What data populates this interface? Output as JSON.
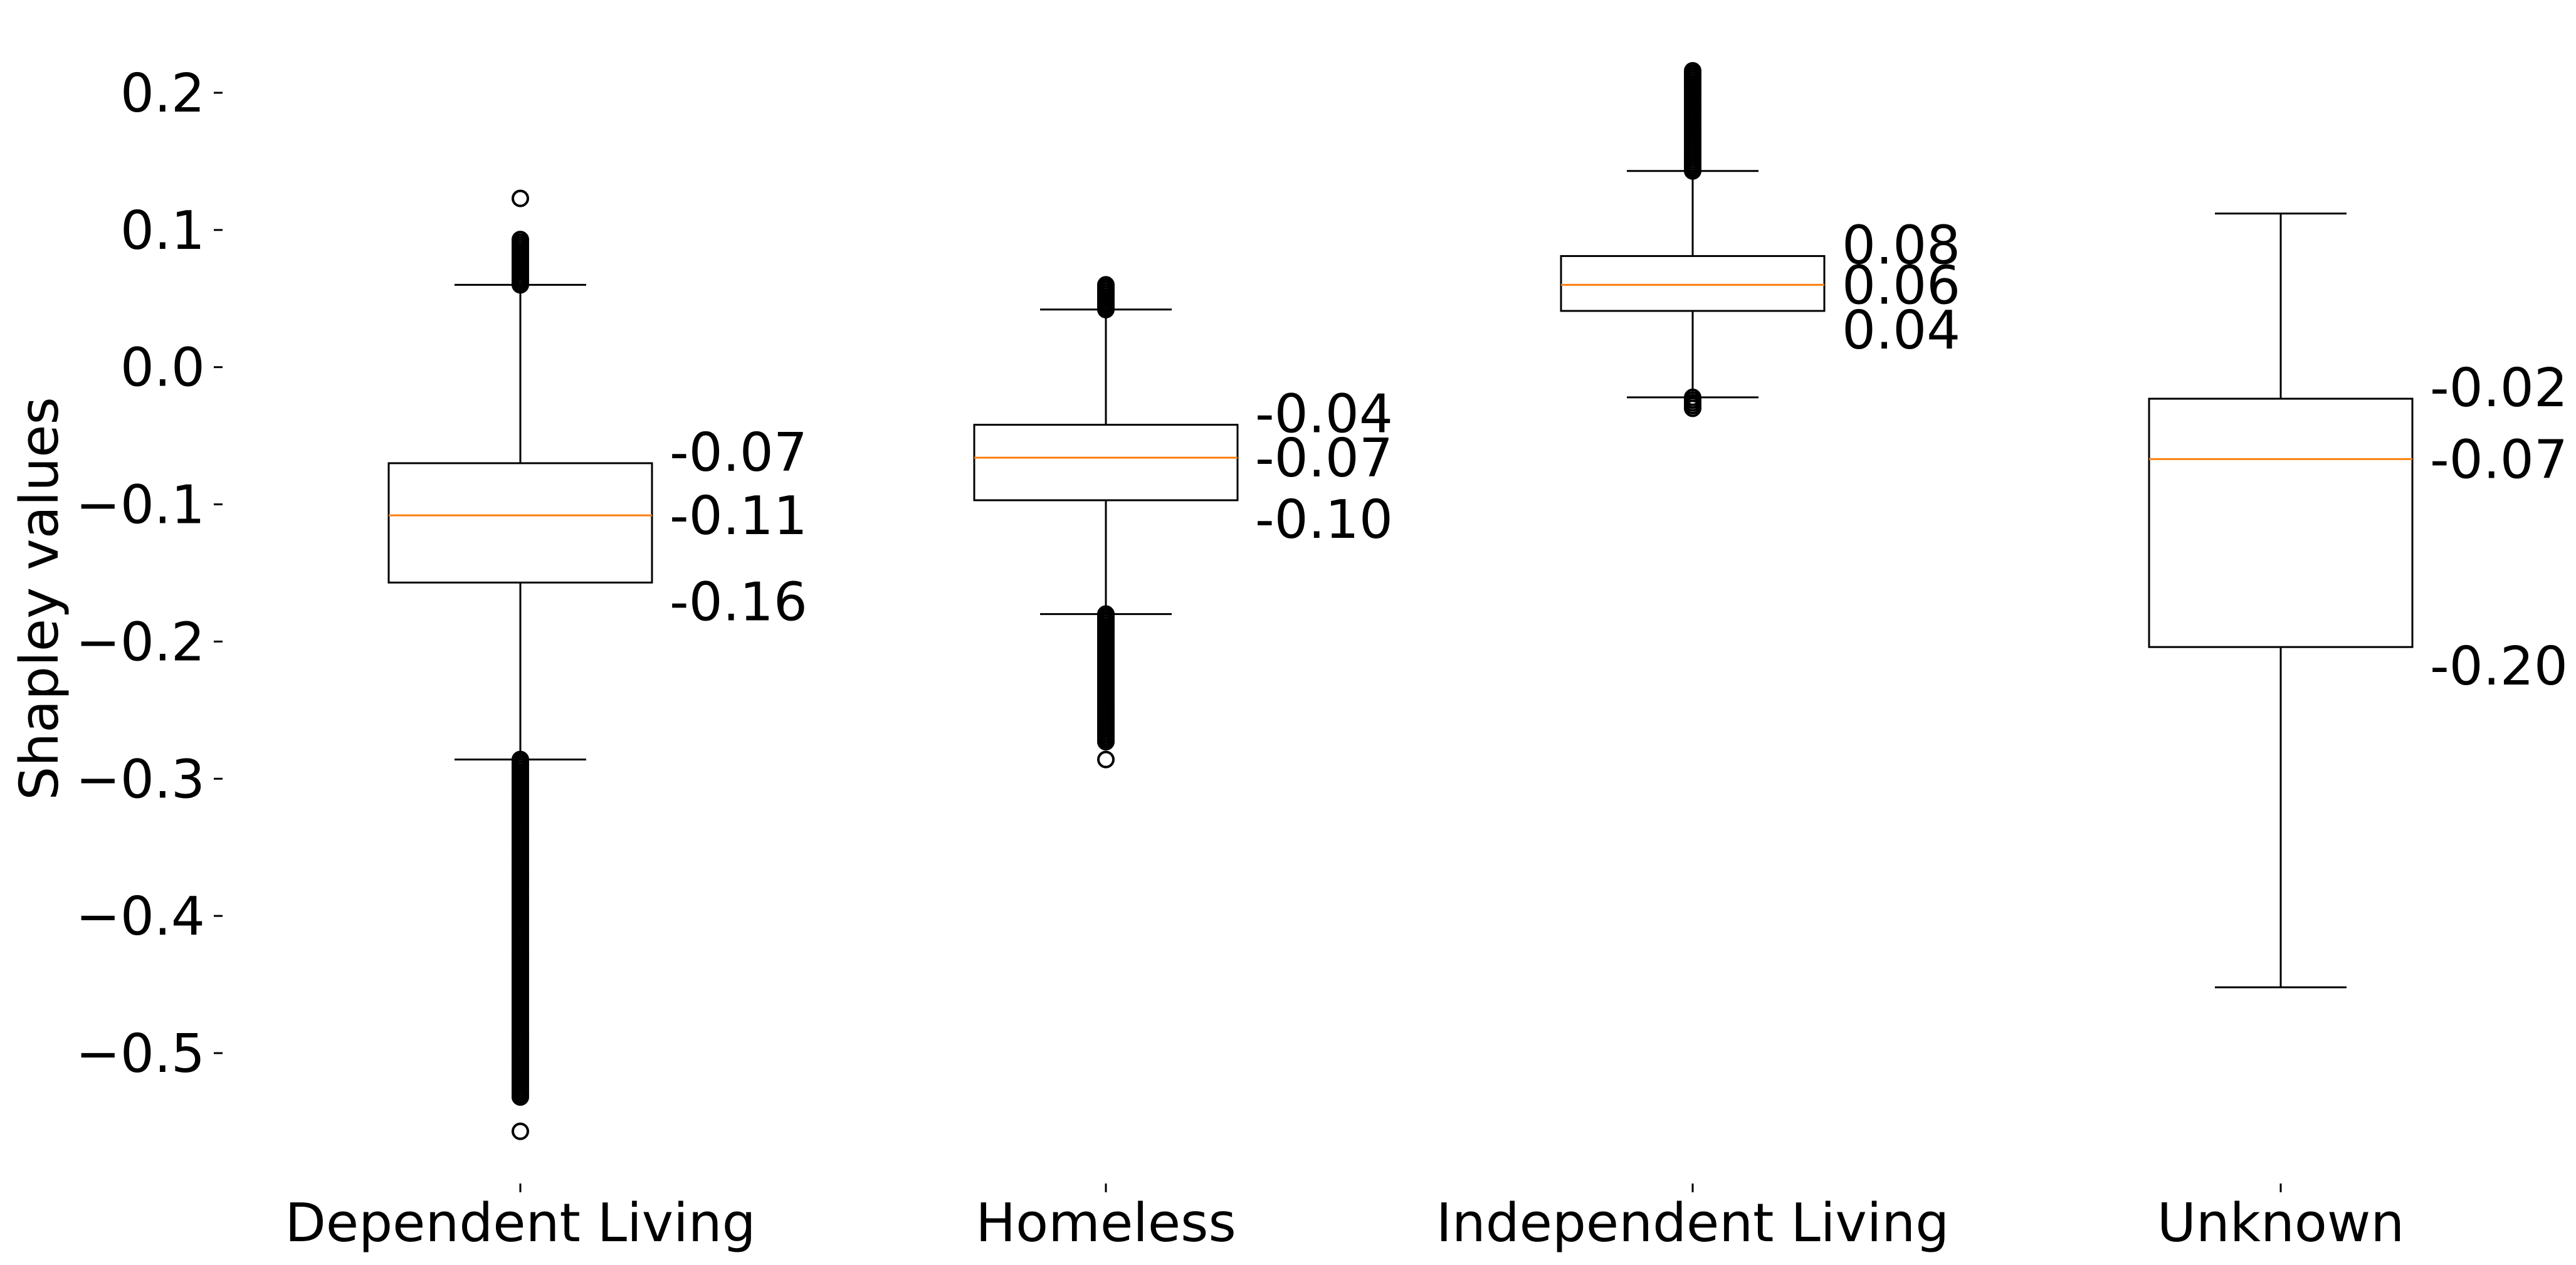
{
  "chart_data": {
    "type": "box",
    "ylabel": "Shapley values",
    "ylim": [
      -0.59,
      0.24
    ],
    "yticks": [
      {
        "value": 0.2,
        "label": "0.2"
      },
      {
        "value": 0.1,
        "label": "0.1"
      },
      {
        "value": 0.0,
        "label": "0.0"
      },
      {
        "value": -0.1,
        "label": "−0.1"
      },
      {
        "value": -0.2,
        "label": "−0.2"
      },
      {
        "value": -0.3,
        "label": "−0.3"
      },
      {
        "value": -0.4,
        "label": "−0.4"
      },
      {
        "value": -0.5,
        "label": "−0.5"
      }
    ],
    "grid": false,
    "median_color": "#ff7f0e",
    "box_color": "#000000",
    "categories": [
      "Dependent Living",
      "Homeless",
      "Independent Living",
      "Unknown"
    ],
    "boxes": [
      {
        "category": "Dependent Living",
        "whisker_low": -0.286,
        "q1": -0.157,
        "median": -0.108,
        "q3": -0.07,
        "whisker_high": 0.06,
        "annotations": [
          "-0.07",
          "-0.11",
          "-0.16"
        ],
        "outliers_dense": [
          [
            0.06,
            0.093
          ],
          [
            -0.532,
            -0.286
          ]
        ],
        "outliers_points": [
          0.123,
          -0.557
        ]
      },
      {
        "category": "Homeless",
        "whisker_low": -0.18,
        "q1": -0.097,
        "median": -0.066,
        "q3": -0.042,
        "whisker_high": 0.042,
        "annotations": [
          "-0.04",
          "-0.07",
          "-0.10"
        ],
        "outliers_dense": [
          [
            0.042,
            0.06
          ],
          [
            -0.273,
            -0.18
          ]
        ],
        "outliers_points": [
          -0.286
        ]
      },
      {
        "category": "Independent Living",
        "whisker_low": -0.022,
        "q1": 0.041,
        "median": 0.06,
        "q3": 0.081,
        "whisker_high": 0.143,
        "annotations": [
          "0.08",
          "0.06",
          "0.04"
        ],
        "outliers_dense": [
          [
            0.143,
            0.216
          ],
          [
            -0.03,
            -0.022
          ]
        ],
        "outliers_points": []
      },
      {
        "category": "Unknown",
        "whisker_low": -0.452,
        "q1": -0.204,
        "median": -0.067,
        "q3": -0.023,
        "whisker_high": 0.112,
        "annotations": [
          "-0.02",
          "-0.07",
          "-0.20"
        ],
        "outliers_dense": [],
        "outliers_points": []
      }
    ]
  }
}
